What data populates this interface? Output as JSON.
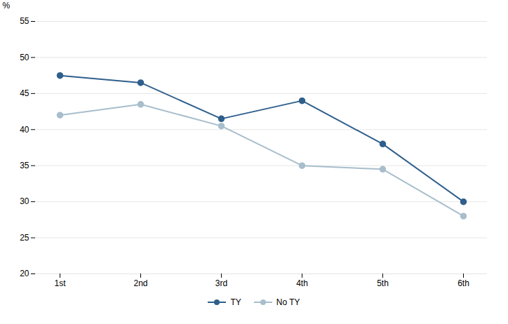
{
  "chart_data": {
    "type": "line",
    "categories": [
      "1st",
      "2nd",
      "3rd",
      "4th",
      "5th",
      "6th"
    ],
    "series": [
      {
        "name": "TY",
        "color": "#2F5F8C",
        "values": [
          47.5,
          46.5,
          41.5,
          44.0,
          38.0,
          30.0
        ]
      },
      {
        "name": "No TY",
        "color": "#A8BECC",
        "values": [
          42.0,
          43.5,
          40.5,
          35.0,
          34.5,
          28.0
        ]
      }
    ],
    "ylabel": "%",
    "ylim": [
      20,
      55
    ],
    "yticks": [
      20,
      25,
      30,
      35,
      40,
      45,
      50,
      55
    ],
    "grid": true,
    "legend": "bottom",
    "marker": "circle"
  }
}
